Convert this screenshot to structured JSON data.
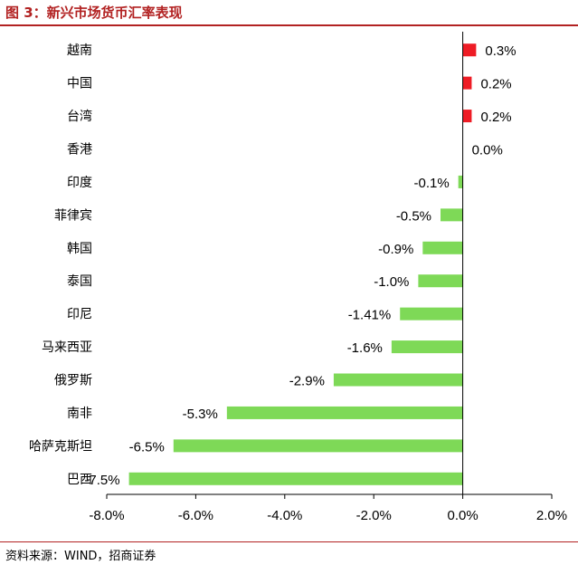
{
  "figure": {
    "title": "图 3：新兴市场货币汇率表现",
    "source": "资料来源：WIND，招商证券"
  },
  "chart_data": {
    "type": "bar",
    "orientation": "horizontal",
    "categories": [
      "越南",
      "中国",
      "台湾",
      "香港",
      "印度",
      "菲律宾",
      "韩国",
      "泰国",
      "印尼",
      "马来西亚",
      "俄罗斯",
      "南非",
      "哈萨克斯坦",
      "巴西"
    ],
    "values": [
      0.3,
      0.2,
      0.2,
      0.0,
      -0.1,
      -0.5,
      -0.9,
      -1.0,
      -1.41,
      -1.6,
      -2.9,
      -5.3,
      -6.5,
      -7.5
    ],
    "data_labels": [
      "0.3%",
      "0.2%",
      "0.2%",
      "0.0%",
      "-0.1%",
      "-0.5%",
      "-0.9%",
      "-1.0%",
      "-1.41%",
      "-1.6%",
      "-2.9%",
      "-5.3%",
      "-6.5%",
      "-7.5%"
    ],
    "xlim": [
      -8.0,
      2.0
    ],
    "xticks": [
      -8.0,
      -6.0,
      -4.0,
      -2.0,
      0.0,
      2.0
    ],
    "xtick_labels": [
      "-8.0%",
      "-6.0%",
      "-4.0%",
      "-2.0%",
      "0.0%",
      "2.0%"
    ],
    "colors": {
      "positive": "#ee1c25",
      "negative": "#7ed957",
      "axis": "#000000"
    },
    "grid": false,
    "legend": "none"
  }
}
